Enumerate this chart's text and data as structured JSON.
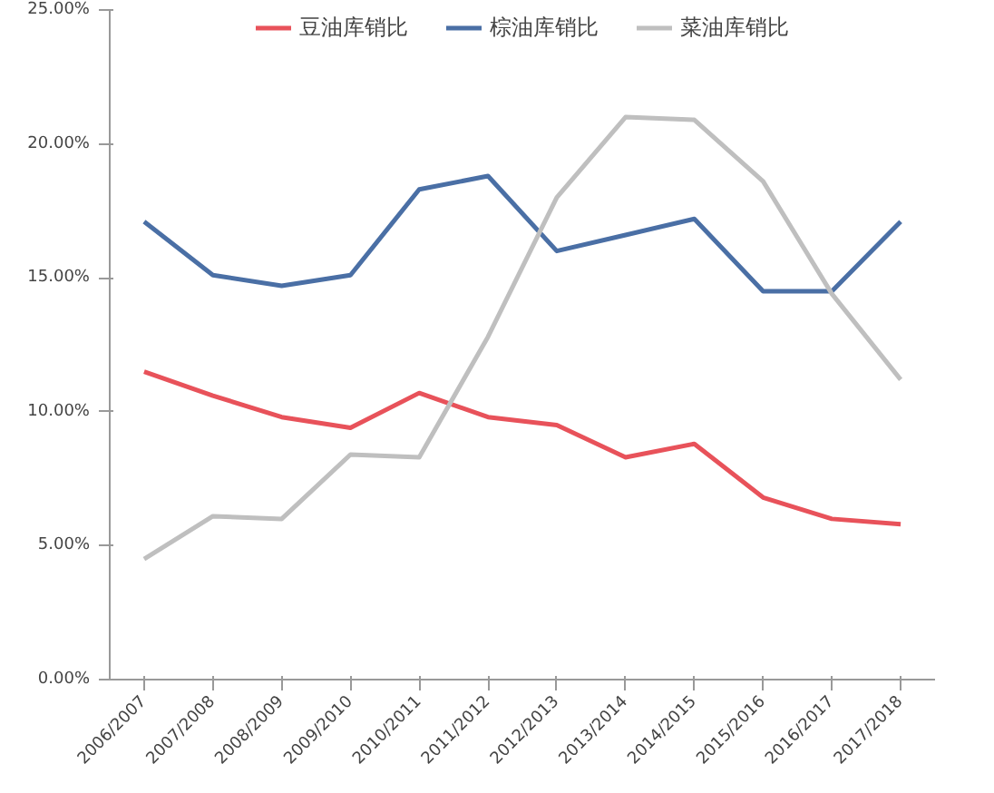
{
  "chart_data": {
    "type": "line",
    "categories": [
      "2006/2007",
      "2007/2008",
      "2008/2009",
      "2009/2010",
      "2010/2011",
      "2011/2012",
      "2012/2013",
      "2013/2014",
      "2014/2015",
      "2015/2016",
      "2016/2017",
      "2017/2018"
    ],
    "series": [
      {
        "name": "豆油库销比",
        "color": "#e8525a",
        "values": [
          11.5,
          10.6,
          9.8,
          9.4,
          10.7,
          9.8,
          9.5,
          8.3,
          8.8,
          6.8,
          6.0,
          5.8
        ]
      },
      {
        "name": "棕油库销比",
        "color": "#4a6fa5",
        "values": [
          17.1,
          15.1,
          14.7,
          15.1,
          18.3,
          18.8,
          16.0,
          16.6,
          17.2,
          14.5,
          14.5,
          17.1
        ]
      },
      {
        "name": "菜油库销比",
        "color": "#bfbfbf",
        "values": [
          4.5,
          6.1,
          6.0,
          8.4,
          8.3,
          12.8,
          18.0,
          21.0,
          20.9,
          18.6,
          14.4,
          11.2
        ]
      }
    ],
    "ylim": [
      0,
      25
    ],
    "yticks": [
      {
        "value": 0,
        "label": "0.00%"
      },
      {
        "value": 5,
        "label": "5.00%"
      },
      {
        "value": 10,
        "label": "10.00%"
      },
      {
        "value": 15,
        "label": "15.00%"
      },
      {
        "value": 20,
        "label": "20.00%"
      },
      {
        "value": 25,
        "label": "25.00%"
      }
    ],
    "grid": false,
    "legend": "top",
    "marker": "none",
    "line_style": "solid"
  }
}
